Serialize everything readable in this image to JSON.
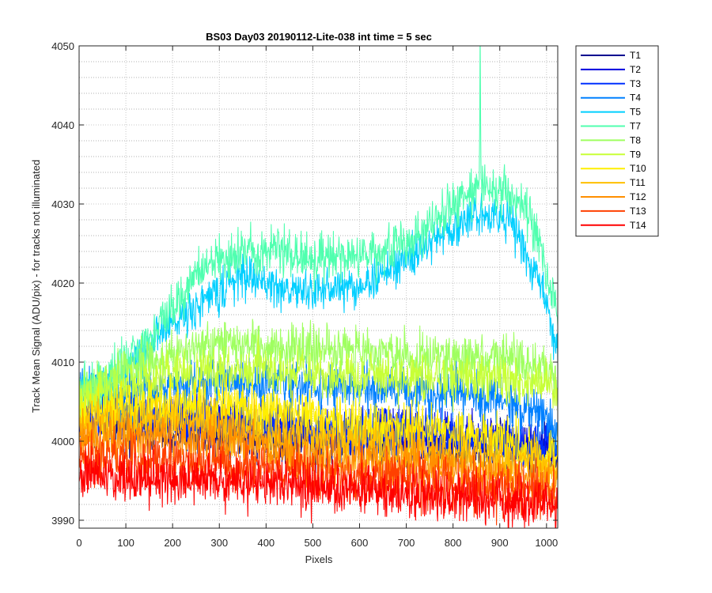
{
  "chart_data": {
    "type": "line",
    "title": "BS03 Day03 20190112-Lite-038 int time = 5 sec",
    "xlabel": "Pixels",
    "ylabel": "Track Mean Signal (ADU/pix) - for tracks not illuminated",
    "xlim": [
      0,
      1024
    ],
    "ylim": [
      3989,
      4050
    ],
    "xticks": [
      0,
      100,
      200,
      300,
      400,
      500,
      600,
      700,
      800,
      900,
      1000
    ],
    "yticks": [
      3990,
      4000,
      4010,
      4020,
      4030,
      4040,
      4050
    ],
    "grid": true,
    "legend_position": "outside-top-right",
    "series": [
      {
        "name": "T1",
        "color": "#00008f",
        "profile": [
          [
            0,
            4003
          ],
          [
            100,
            4002
          ],
          [
            200,
            4001
          ],
          [
            300,
            4001
          ],
          [
            400,
            4001
          ],
          [
            500,
            4000
          ],
          [
            600,
            4000
          ],
          [
            700,
            4000
          ],
          [
            800,
            3999.5
          ],
          [
            900,
            3999.5
          ],
          [
            1000,
            3999
          ],
          [
            1024,
            3998.5
          ]
        ],
        "noise": 1.5
      },
      {
        "name": "T2",
        "color": "#0000df",
        "profile": [
          [
            0,
            4003
          ],
          [
            100,
            4003
          ],
          [
            200,
            4003
          ],
          [
            300,
            4003
          ],
          [
            400,
            4002
          ],
          [
            500,
            4001
          ],
          [
            600,
            4001
          ],
          [
            700,
            4001
          ],
          [
            800,
            4000.5
          ],
          [
            900,
            4000
          ],
          [
            1000,
            3999
          ],
          [
            1024,
            3998.5
          ]
        ],
        "noise": 1.5
      },
      {
        "name": "T3",
        "color": "#0030ff",
        "profile": [
          [
            0,
            4003.5
          ],
          [
            100,
            4003
          ],
          [
            200,
            4003
          ],
          [
            300,
            4003
          ],
          [
            400,
            4002
          ],
          [
            500,
            4001.5
          ],
          [
            600,
            4001
          ],
          [
            700,
            4001
          ],
          [
            800,
            4000.5
          ],
          [
            900,
            4000
          ],
          [
            1000,
            3999.5
          ],
          [
            1024,
            3999
          ]
        ],
        "noise": 1.5
      },
      {
        "name": "T4",
        "color": "#0080ff",
        "profile": [
          [
            0,
            4006
          ],
          [
            100,
            4006
          ],
          [
            200,
            4007
          ],
          [
            300,
            4007.5
          ],
          [
            400,
            4007.5
          ],
          [
            500,
            4007
          ],
          [
            600,
            4006.5
          ],
          [
            700,
            4006.5
          ],
          [
            800,
            4006
          ],
          [
            900,
            4005.5
          ],
          [
            1000,
            4003
          ],
          [
            1024,
            4001
          ]
        ],
        "noise": 1.5
      },
      {
        "name": "T5",
        "color": "#00cfff",
        "profile": [
          [
            0,
            4006
          ],
          [
            50,
            4006.5
          ],
          [
            100,
            4009
          ],
          [
            150,
            4012
          ],
          [
            200,
            4015
          ],
          [
            250,
            4017
          ],
          [
            300,
            4019
          ],
          [
            350,
            4021
          ],
          [
            400,
            4020
          ],
          [
            450,
            4019
          ],
          [
            500,
            4019
          ],
          [
            550,
            4019.5
          ],
          [
            600,
            4019.5
          ],
          [
            650,
            4021
          ],
          [
            700,
            4023
          ],
          [
            750,
            4025
          ],
          [
            800,
            4027
          ],
          [
            850,
            4028.5
          ],
          [
            900,
            4029
          ],
          [
            930,
            4027
          ],
          [
            960,
            4023
          ],
          [
            1000,
            4018
          ],
          [
            1024,
            4011
          ]
        ],
        "noise": 1.3
      },
      {
        "name": "T7",
        "color": "#50ffaf",
        "profile": [
          [
            0,
            4007
          ],
          [
            50,
            4007
          ],
          [
            100,
            4010
          ],
          [
            150,
            4013
          ],
          [
            200,
            4017
          ],
          [
            250,
            4021
          ],
          [
            300,
            4023
          ],
          [
            350,
            4024
          ],
          [
            400,
            4024.5
          ],
          [
            450,
            4024
          ],
          [
            500,
            4023
          ],
          [
            550,
            4023
          ],
          [
            600,
            4023.5
          ],
          [
            650,
            4024
          ],
          [
            700,
            4025
          ],
          [
            750,
            4027
          ],
          [
            800,
            4030
          ],
          [
            850,
            4032
          ],
          [
            900,
            4032
          ],
          [
            940,
            4030
          ],
          [
            980,
            4026
          ],
          [
            1024,
            4016
          ]
        ],
        "noise": 1.5
      },
      {
        "name": "T8",
        "color": "#9fff60",
        "profile": [
          [
            0,
            4006
          ],
          [
            100,
            4009
          ],
          [
            200,
            4011
          ],
          [
            300,
            4012
          ],
          [
            400,
            4012
          ],
          [
            500,
            4011.5
          ],
          [
            600,
            4011.5
          ],
          [
            700,
            4011
          ],
          [
            800,
            4010.5
          ],
          [
            900,
            4010.5
          ],
          [
            1000,
            4009
          ],
          [
            1024,
            4007
          ]
        ],
        "noise": 1.5
      },
      {
        "name": "T9",
        "color": "#c8ff37",
        "profile": [
          [
            0,
            4005
          ],
          [
            100,
            4007
          ],
          [
            200,
            4008.5
          ],
          [
            300,
            4009
          ],
          [
            400,
            4009
          ],
          [
            500,
            4008.5
          ],
          [
            600,
            4008
          ],
          [
            700,
            4008
          ],
          [
            800,
            4008
          ],
          [
            900,
            4008
          ],
          [
            1000,
            4007
          ],
          [
            1024,
            4006
          ]
        ],
        "noise": 1.5
      },
      {
        "name": "T10",
        "color": "#ffef00",
        "profile": [
          [
            0,
            4003
          ],
          [
            100,
            4004
          ],
          [
            200,
            4004.5
          ],
          [
            300,
            4004.5
          ],
          [
            400,
            4004
          ],
          [
            500,
            4003
          ],
          [
            600,
            4002
          ],
          [
            700,
            4001.5
          ],
          [
            800,
            4001
          ],
          [
            900,
            4000
          ],
          [
            1000,
            3999
          ],
          [
            1024,
            3998.5
          ]
        ],
        "noise": 1.6
      },
      {
        "name": "T11",
        "color": "#ffbf00",
        "profile": [
          [
            0,
            4002
          ],
          [
            100,
            4002
          ],
          [
            200,
            4002.5
          ],
          [
            300,
            4002
          ],
          [
            400,
            4001
          ],
          [
            500,
            4000
          ],
          [
            600,
            3999.5
          ],
          [
            700,
            3999
          ],
          [
            800,
            3998.5
          ],
          [
            900,
            3998
          ],
          [
            1000,
            3997
          ],
          [
            1024,
            3996.5
          ]
        ],
        "noise": 1.6
      },
      {
        "name": "T12",
        "color": "#ff8f00",
        "profile": [
          [
            0,
            4000
          ],
          [
            100,
            4000
          ],
          [
            200,
            4000.5
          ],
          [
            300,
            4000
          ],
          [
            400,
            3999
          ],
          [
            500,
            3998
          ],
          [
            600,
            3997.5
          ],
          [
            700,
            3997
          ],
          [
            800,
            3996.5
          ],
          [
            900,
            3996
          ],
          [
            1000,
            3995
          ],
          [
            1024,
            3994.5
          ]
        ],
        "noise": 1.6
      },
      {
        "name": "T13",
        "color": "#ff4000",
        "profile": [
          [
            0,
            3998
          ],
          [
            100,
            3997.5
          ],
          [
            200,
            3997.5
          ],
          [
            300,
            3997
          ],
          [
            400,
            3996.5
          ],
          [
            500,
            3996
          ],
          [
            600,
            3995.5
          ],
          [
            700,
            3995
          ],
          [
            800,
            3994.5
          ],
          [
            900,
            3994
          ],
          [
            1000,
            3993.5
          ],
          [
            1024,
            3993
          ]
        ],
        "noise": 1.6
      },
      {
        "name": "T14",
        "color": "#ff0000",
        "profile": [
          [
            0,
            3996
          ],
          [
            100,
            3995.5
          ],
          [
            200,
            3995
          ],
          [
            300,
            3995
          ],
          [
            400,
            3994.5
          ],
          [
            500,
            3994
          ],
          [
            600,
            3994
          ],
          [
            700,
            3993.5
          ],
          [
            800,
            3993
          ],
          [
            900,
            3992.5
          ],
          [
            1000,
            3992
          ],
          [
            1024,
            3992
          ]
        ],
        "noise": 1.6
      }
    ],
    "annotations": [
      {
        "series": "T7",
        "type": "spike",
        "x": 858,
        "y": 4050
      }
    ]
  }
}
